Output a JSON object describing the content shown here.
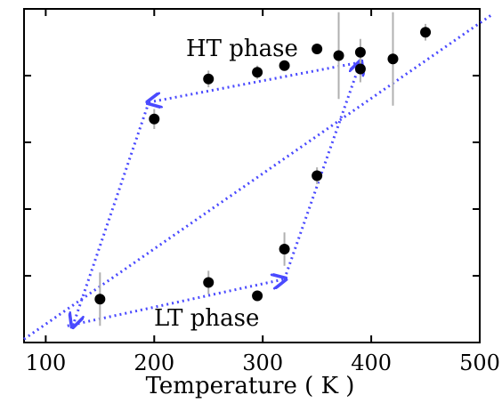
{
  "chart_data": {
    "type": "scatter",
    "xlabel": "Temperature ( K )",
    "ylabel": "",
    "xlim": [
      80,
      500
    ],
    "ylim": [
      0,
      1
    ],
    "x_ticks": [
      100,
      200,
      300,
      400,
      500
    ],
    "y_ticks": [
      0.2,
      0.4,
      0.6,
      0.8
    ],
    "annotations": [
      "HT phase",
      "LT phase"
    ],
    "points": [
      {
        "x": 150,
        "y": 0.13,
        "err": 0.08
      },
      {
        "x": 200,
        "y": 0.67,
        "err": 0.03
      },
      {
        "x": 250,
        "y": 0.18,
        "err": 0.035
      },
      {
        "x": 250,
        "y": 0.79,
        "err": 0.025
      },
      {
        "x": 295,
        "y": 0.14,
        "err": 0.015
      },
      {
        "x": 295,
        "y": 0.81,
        "err": 0.02
      },
      {
        "x": 320,
        "y": 0.28,
        "err": 0.05
      },
      {
        "x": 320,
        "y": 0.83,
        "err": 0.015
      },
      {
        "x": 350,
        "y": 0.5,
        "err": 0.025
      },
      {
        "x": 350,
        "y": 0.88,
        "err": 0.015
      },
      {
        "x": 370,
        "y": 0.86,
        "err": 0.13
      },
      {
        "x": 390,
        "y": 0.82,
        "err": 0.04
      },
      {
        "x": 390,
        "y": 0.87,
        "err": 0.04
      },
      {
        "x": 420,
        "y": 0.85,
        "err": 0.14
      },
      {
        "x": 450,
        "y": 0.93,
        "err": 0.025
      }
    ],
    "guide_lines": {
      "color": "#4a4aff",
      "style": "dotted",
      "segments": [
        {
          "from": [
            80,
            0.01
          ],
          "to": [
            510,
            0.98
          ],
          "arrow": false
        },
        {
          "from": [
            120,
            0.05
          ],
          "to": [
            320,
            0.19
          ],
          "arrow": true
        },
        {
          "from": [
            320,
            0.19
          ],
          "to": [
            390,
            0.84
          ],
          "arrow": true
        },
        {
          "from": [
            390,
            0.84
          ],
          "to": [
            195,
            0.72
          ],
          "arrow": true
        },
        {
          "from": [
            195,
            0.72
          ],
          "to": [
            125,
            0.05
          ],
          "arrow": true
        }
      ]
    },
    "colors": {
      "points": "#000000",
      "error_bars": "#b0b0b0",
      "guides": "#4a4aff"
    },
    "grid": false,
    "legend": "none"
  }
}
